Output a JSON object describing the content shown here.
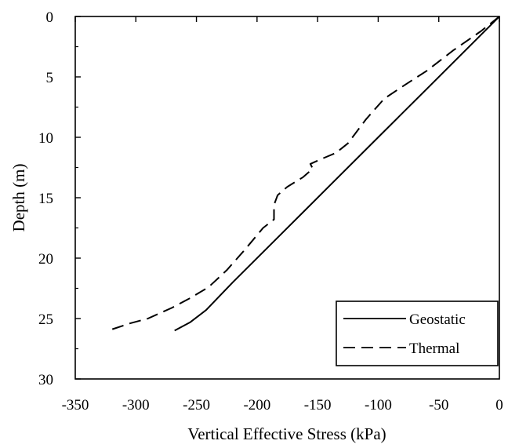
{
  "chart_data": {
    "type": "line",
    "title": "",
    "xlabel": "Vertical Effective Stress (kPa)",
    "ylabel": "Depth (m)",
    "xlim": [
      -350,
      0
    ],
    "ylim": [
      0,
      30
    ],
    "y_inverted": true,
    "x_axis_position": "top",
    "x_tick_labels_position": "bottom",
    "xticks": [
      -350,
      -300,
      -250,
      -200,
      -150,
      -100,
      -50,
      0
    ],
    "yticks": [
      0,
      5,
      10,
      15,
      20,
      25,
      30
    ],
    "grid": false,
    "legend_position": "bottom-right",
    "series": [
      {
        "name": "Geostatic",
        "style": "solid",
        "color": "#000000",
        "points": [
          {
            "x": 0,
            "y": 0
          },
          {
            "x": -20,
            "y": 2
          },
          {
            "x": -60,
            "y": 6
          },
          {
            "x": -100,
            "y": 10
          },
          {
            "x": -140,
            "y": 14
          },
          {
            "x": -180,
            "y": 18
          },
          {
            "x": -220,
            "y": 22
          },
          {
            "x": -242,
            "y": 24.3
          },
          {
            "x": -255,
            "y": 25.3
          },
          {
            "x": -268,
            "y": 26
          }
        ]
      },
      {
        "name": "Thermal",
        "style": "dashed",
        "color": "#000000",
        "points": [
          {
            "x": 0,
            "y": 0
          },
          {
            "x": -15,
            "y": 1.2
          },
          {
            "x": -38,
            "y": 2.8
          },
          {
            "x": -60,
            "y": 4.5
          },
          {
            "x": -80,
            "y": 5.8
          },
          {
            "x": -95,
            "y": 6.8
          },
          {
            "x": -110,
            "y": 8.5
          },
          {
            "x": -125,
            "y": 10.5
          },
          {
            "x": -135,
            "y": 11.3
          },
          {
            "x": -147,
            "y": 11.8
          },
          {
            "x": -156,
            "y": 12.2
          },
          {
            "x": -154,
            "y": 12.6
          },
          {
            "x": -162,
            "y": 13.3
          },
          {
            "x": -175,
            "y": 14.1
          },
          {
            "x": -183,
            "y": 14.8
          },
          {
            "x": -186,
            "y": 15.6
          },
          {
            "x": -186,
            "y": 16.8
          },
          {
            "x": -195,
            "y": 17.5
          },
          {
            "x": -210,
            "y": 19.3
          },
          {
            "x": -225,
            "y": 21
          },
          {
            "x": -240,
            "y": 22.4
          },
          {
            "x": -255,
            "y": 23.3
          },
          {
            "x": -270,
            "y": 24.1
          },
          {
            "x": -290,
            "y": 25
          },
          {
            "x": -305,
            "y": 25.4
          },
          {
            "x": -320,
            "y": 25.9
          }
        ]
      }
    ]
  }
}
